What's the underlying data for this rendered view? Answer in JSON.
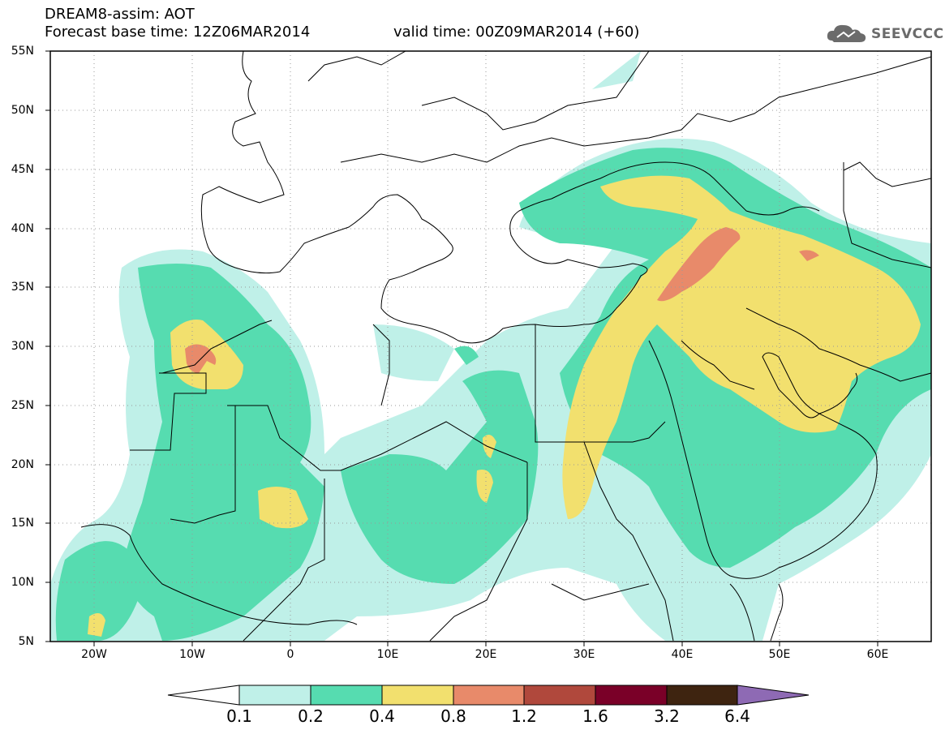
{
  "header": {
    "title": "DREAM8-assim: AOT",
    "base_time": "Forecast base time: 12Z06MAR2014",
    "valid_time": "valid time: 00Z09MAR2014 (+60)",
    "logo_text": "SEEVCCC"
  },
  "map": {
    "lat_labels": [
      "55N",
      "50N",
      "45N",
      "40N",
      "35N",
      "30N",
      "25N",
      "20N",
      "15N",
      "10N",
      "5N"
    ],
    "lon_labels": [
      "20W",
      "10W",
      "0",
      "10E",
      "20E",
      "30E",
      "40E",
      "50E",
      "60E"
    ],
    "lon_range": [
      -25,
      65
    ],
    "lat_range": [
      5,
      55
    ]
  },
  "colorbar": {
    "labels": [
      "0.1",
      "0.2",
      "0.4",
      "0.8",
      "1.2",
      "1.6",
      "3.2",
      "6.4"
    ],
    "colors": [
      "#ffffff",
      "#bff0e8",
      "#56dcb0",
      "#f2e06e",
      "#e88a6a",
      "#b0483c",
      "#7a0028",
      "#3e2410",
      "#8e6ab4"
    ]
  }
}
